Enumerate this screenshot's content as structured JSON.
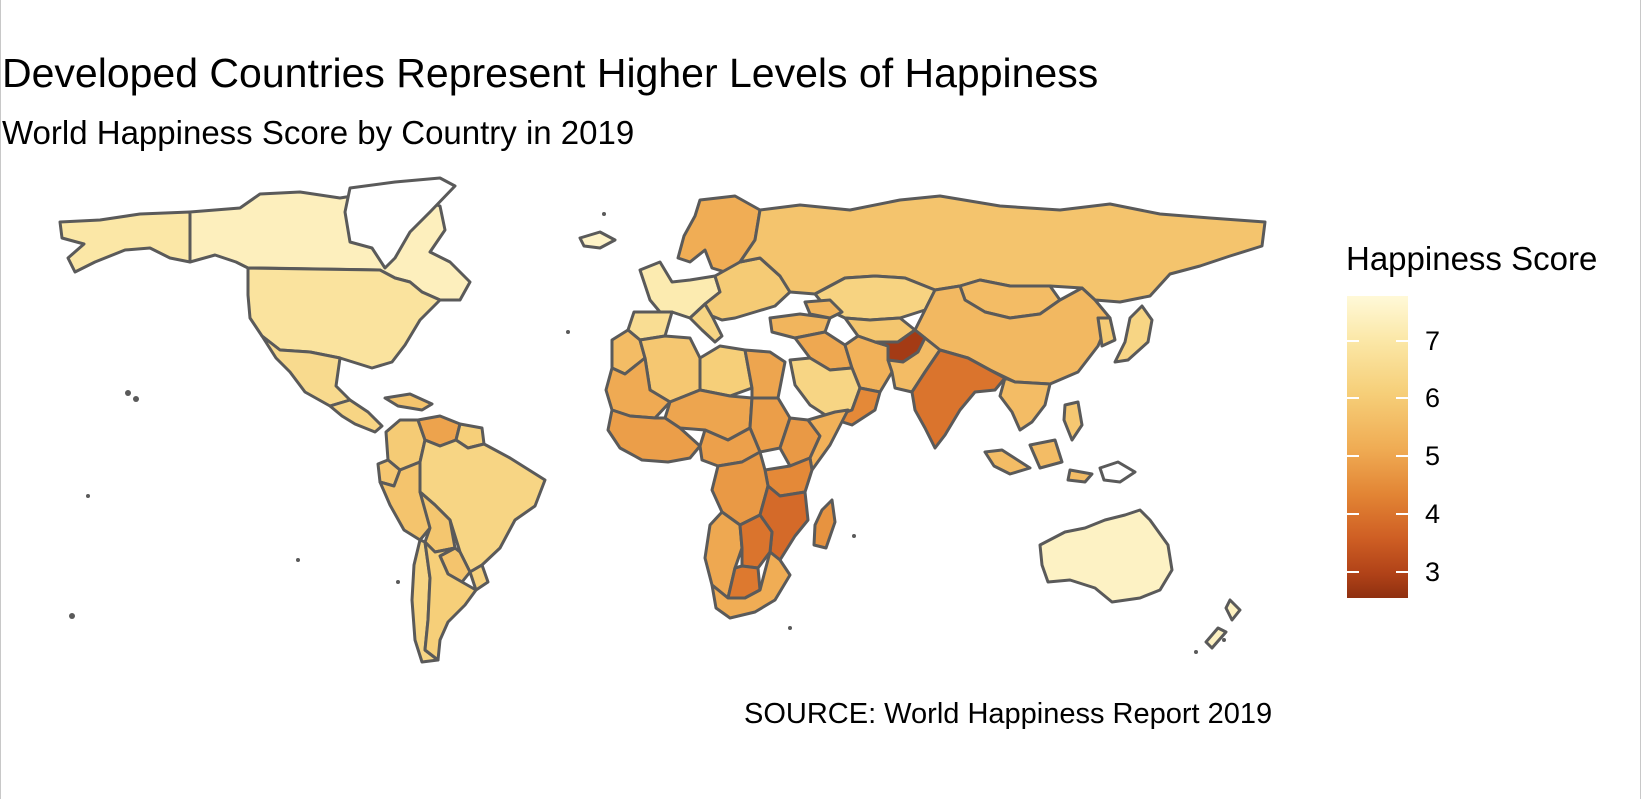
{
  "title": "Developed Countries Represent Higher Levels of Happiness",
  "subtitle": "World Happiness Score by Country in 2019",
  "caption": "SOURCE: World Happiness Report 2019",
  "legend": {
    "title": "Happiness Score",
    "breaks": [
      "7",
      "6",
      "5",
      "4",
      "3"
    ],
    "range": [
      2.9,
      7.8
    ],
    "low_color": "#8f3010",
    "high_color": "#fff9d8"
  },
  "style": {
    "border_color": "#5a5a5a",
    "background": "#ffffff"
  },
  "regions": [
    {
      "name": "Alaska",
      "level": 0.85
    },
    {
      "name": "Canada",
      "level": 0.92
    },
    {
      "name": "Greenland",
      "level": null
    },
    {
      "name": "United States",
      "level": 0.82
    },
    {
      "name": "Mexico",
      "level": 0.76
    },
    {
      "name": "Central America",
      "level": 0.72
    },
    {
      "name": "Caribbean",
      "level": 0.62
    },
    {
      "name": "Colombia",
      "level": 0.66
    },
    {
      "name": "Venezuela",
      "level": 0.46
    },
    {
      "name": "Guianas",
      "level": 0.68
    },
    {
      "name": "Brazil",
      "level": 0.72
    },
    {
      "name": "Ecuador",
      "level": 0.64
    },
    {
      "name": "Peru",
      "level": 0.62
    },
    {
      "name": "Bolivia",
      "level": 0.63
    },
    {
      "name": "Paraguay",
      "level": 0.62
    },
    {
      "name": "Chile",
      "level": 0.72
    },
    {
      "name": "Argentina",
      "level": 0.68
    },
    {
      "name": "Uruguay",
      "level": 0.7
    },
    {
      "name": "Iceland",
      "level": 0.95
    },
    {
      "name": "Nordic countries",
      "level": 0.97
    },
    {
      "name": "Western Europe",
      "level": 0.88
    },
    {
      "name": "Iberia",
      "level": 0.78
    },
    {
      "name": "Italy",
      "level": 0.72
    },
    {
      "name": "Eastern Europe",
      "level": 0.66
    },
    {
      "name": "Russia",
      "level": 0.62
    },
    {
      "name": "Kazakhstan",
      "level": 0.71
    },
    {
      "name": "Central Asia",
      "level": 0.63
    },
    {
      "name": "Mongolia",
      "level": 0.58
    },
    {
      "name": "China",
      "level": 0.56
    },
    {
      "name": "Turkey",
      "level": 0.54
    },
    {
      "name": "Caucasus",
      "level": 0.55
    },
    {
      "name": "Iran",
      "level": 0.52
    },
    {
      "name": "Iraq and Syria",
      "level": 0.48
    },
    {
      "name": "Saudi Arabia",
      "level": 0.72
    },
    {
      "name": "Yemen",
      "level": 0.36
    },
    {
      "name": "Afghanistan",
      "level": 0.05
    },
    {
      "name": "Pakistan",
      "level": 0.58
    },
    {
      "name": "India",
      "level": 0.28
    },
    {
      "name": "Indochina",
      "level": 0.58
    },
    {
      "name": "Korea",
      "level": 0.66
    },
    {
      "name": "Japan",
      "level": 0.72
    },
    {
      "name": "Indonesia",
      "level": 0.58
    },
    {
      "name": "Philippines",
      "level": 0.64
    },
    {
      "name": "Papua New Guinea",
      "level": null
    },
    {
      "name": "Australia",
      "level": 0.94
    },
    {
      "name": "New Zealand",
      "level": 0.93
    },
    {
      "name": "Morocco",
      "level": 0.58
    },
    {
      "name": "Algeria",
      "level": 0.64
    },
    {
      "name": "Libya",
      "level": 0.68
    },
    {
      "name": "Egypt",
      "level": 0.47
    },
    {
      "name": "Mauritania and Mali",
      "level": 0.49
    },
    {
      "name": "Niger and Chad",
      "level": 0.47
    },
    {
      "name": "Sudan",
      "level": 0.44
    },
    {
      "name": "West Africa",
      "level": 0.44
    },
    {
      "name": "Central Africa",
      "level": 0.45
    },
    {
      "name": "Ethiopia",
      "level": 0.42
    },
    {
      "name": "Somalia",
      "level": 0.52
    },
    {
      "name": "East Africa",
      "level": 0.36
    },
    {
      "name": "DR Congo",
      "level": 0.42
    },
    {
      "name": "Tanzania and Malawi",
      "level": 0.24
    },
    {
      "name": "Angola and Namibia",
      "level": 0.48
    },
    {
      "name": "Zambia and Zimbabwe",
      "level": 0.28
    },
    {
      "name": "Botswana",
      "level": 0.3
    },
    {
      "name": "South Africa",
      "level": 0.5
    },
    {
      "name": "Madagascar",
      "level": 0.4
    }
  ]
}
